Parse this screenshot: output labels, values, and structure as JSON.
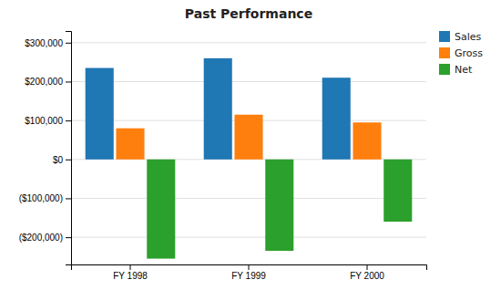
{
  "chart_data": {
    "type": "bar",
    "title": "Past Performance",
    "categories": [
      "FY 1998",
      "FY 1999",
      "FY 2000"
    ],
    "series": [
      {
        "name": "Sales",
        "values": [
          235000,
          260000,
          210000
        ]
      },
      {
        "name": "Gross",
        "values": [
          80000,
          115000,
          95000
        ]
      },
      {
        "name": "Net",
        "values": [
          -255000,
          -235000,
          -160000
        ]
      }
    ],
    "ylim": [
      -270000,
      330000
    ],
    "yticks": [
      {
        "value": -200000,
        "label": "($200,000)"
      },
      {
        "value": -100000,
        "label": "($100,000)"
      },
      {
        "value": 0,
        "label": "$0"
      },
      {
        "value": 100000,
        "label": "$100,000"
      },
      {
        "value": 200000,
        "label": "$200,000"
      },
      {
        "value": 300000,
        "label": "$300,000"
      }
    ],
    "grid": true,
    "legend": "upper right"
  }
}
